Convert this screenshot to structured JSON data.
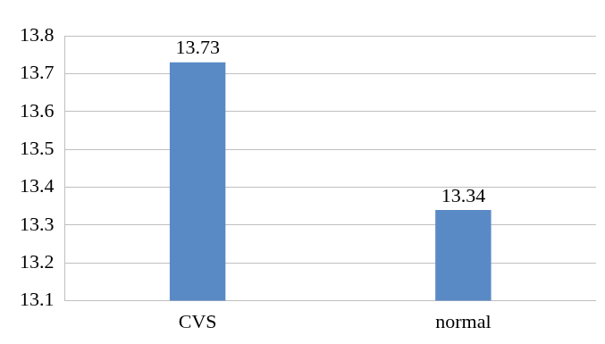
{
  "chart_data": {
    "type": "bar",
    "categories": [
      "CVS",
      "normal"
    ],
    "values": [
      13.73,
      13.34
    ],
    "color": "#5a8ac6",
    "ylim": [
      13.1,
      13.8
    ],
    "yticks": [
      13.1,
      13.2,
      13.3,
      13.4,
      13.5,
      13.6,
      13.7,
      13.8
    ],
    "grid": true,
    "data_labels": true
  }
}
